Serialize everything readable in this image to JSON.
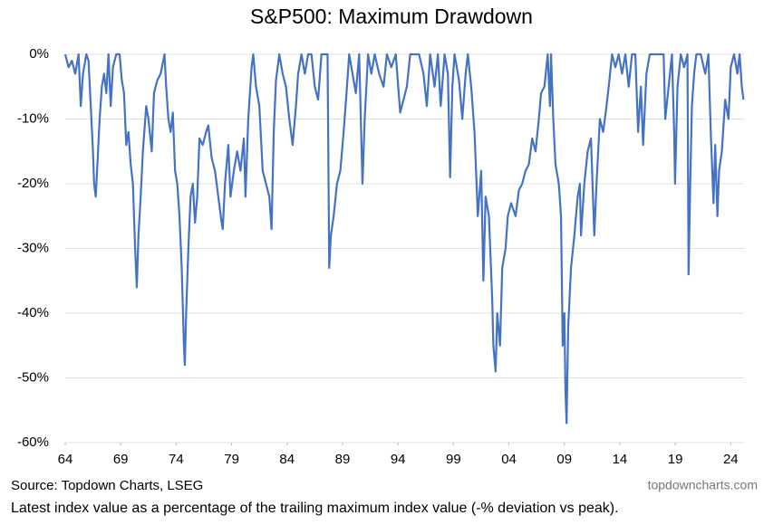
{
  "chart_data": {
    "type": "line",
    "title": "S&P500: Maximum Drawdown",
    "source": "Source: Topdown Charts, LSEG",
    "watermark": "topdowncharts.com",
    "note": "Latest index value as a percentage of the trailing maximum index value (-% deviation vs peak).",
    "x": [
      1964.0,
      1964.3,
      1964.6,
      1964.9,
      1965.2,
      1965.4,
      1965.6,
      1965.9,
      1966.1,
      1966.3,
      1966.5,
      1966.6,
      1966.75,
      1966.9,
      1967.1,
      1967.3,
      1967.5,
      1967.7,
      1967.9,
      1968.1,
      1968.3,
      1968.6,
      1968.9,
      1969.1,
      1969.3,
      1969.5,
      1969.7,
      1969.9,
      1970.1,
      1970.3,
      1970.45,
      1970.6,
      1970.8,
      1971.0,
      1971.3,
      1971.5,
      1971.8,
      1972.0,
      1972.3,
      1972.6,
      1972.95,
      1973.1,
      1973.3,
      1973.5,
      1973.7,
      1973.9,
      1974.1,
      1974.3,
      1974.5,
      1974.7,
      1974.78,
      1974.9,
      1975.1,
      1975.3,
      1975.5,
      1975.7,
      1975.9,
      1976.1,
      1976.4,
      1976.7,
      1976.9,
      1977.2,
      1977.5,
      1977.8,
      1978.1,
      1978.2,
      1978.4,
      1978.7,
      1978.9,
      1979.2,
      1979.5,
      1979.8,
      1980.1,
      1980.25,
      1980.5,
      1980.8,
      1980.95,
      1981.2,
      1981.5,
      1981.8,
      1982.1,
      1982.4,
      1982.6,
      1982.8,
      1983.0,
      1983.3,
      1983.6,
      1983.9,
      1984.2,
      1984.5,
      1984.8,
      1985.0,
      1985.3,
      1985.6,
      1985.9,
      1986.2,
      1986.5,
      1986.8,
      1987.1,
      1987.4,
      1987.65,
      1987.8,
      1987.95,
      1988.2,
      1988.5,
      1988.8,
      1989.1,
      1989.4,
      1989.6,
      1989.9,
      1990.2,
      1990.5,
      1990.8,
      1991.0,
      1991.3,
      1991.6,
      1991.9,
      1992.3,
      1992.7,
      1993.0,
      1993.4,
      1993.8,
      1994.2,
      1994.5,
      1994.8,
      1995.1,
      1995.5,
      1995.9,
      1996.3,
      1996.6,
      1996.9,
      1997.3,
      1997.6,
      1997.85,
      1998.2,
      1998.5,
      1998.7,
      1998.9,
      1999.1,
      1999.5,
      1999.8,
      2000.1,
      2000.3,
      2000.6,
      2000.9,
      2001.2,
      2001.5,
      2001.7,
      2001.9,
      2002.2,
      2002.5,
      2002.6,
      2002.8,
      2002.95,
      2003.2,
      2003.4,
      2003.7,
      2003.9,
      2004.2,
      2004.6,
      2004.9,
      2005.2,
      2005.5,
      2005.8,
      2006.1,
      2006.4,
      2006.7,
      2006.9,
      2007.2,
      2007.5,
      2007.7,
      2007.8,
      2008.0,
      2008.2,
      2008.5,
      2008.7,
      2008.85,
      2009.0,
      2009.1,
      2009.2,
      2009.35,
      2009.6,
      2009.9,
      2010.2,
      2010.4,
      2010.5,
      2010.8,
      2011.1,
      2011.4,
      2011.7,
      2011.9,
      2012.2,
      2012.5,
      2012.8,
      2013.0,
      2013.3,
      2013.6,
      2013.9,
      2014.2,
      2014.5,
      2014.8,
      2015.1,
      2015.4,
      2015.65,
      2015.9,
      2016.1,
      2016.4,
      2016.7,
      2017.0,
      2017.5,
      2017.95,
      2018.1,
      2018.4,
      2018.7,
      2018.9,
      2018.98,
      2019.2,
      2019.5,
      2019.8,
      2020.1,
      2020.2,
      2020.35,
      2020.5,
      2020.7,
      2020.9,
      2021.3,
      2021.7,
      2021.99,
      2022.2,
      2022.45,
      2022.6,
      2022.8,
      2022.95,
      2023.2,
      2023.5,
      2023.8,
      2024.0,
      2024.3,
      2024.6,
      2024.8,
      2025.0,
      2025.15
    ],
    "series": [
      {
        "name": "S&P500 drawdown",
        "color": "#4472c4",
        "values": [
          0,
          -2,
          -1,
          -3,
          0,
          -8,
          -3,
          0,
          -1,
          -8,
          -15,
          -20,
          -22,
          -17,
          -10,
          -5,
          -3,
          -6,
          0,
          -8,
          -2,
          0,
          0,
          -4,
          -6,
          -14,
          -12,
          -17,
          -20,
          -30,
          -36,
          -28,
          -22,
          -15,
          -8,
          -10,
          -15,
          -6,
          -4,
          -3,
          0,
          -5,
          -10,
          -12,
          -9,
          -18,
          -20,
          -25,
          -33,
          -45,
          -48,
          -40,
          -30,
          -22,
          -20,
          -26,
          -22,
          -13,
          -14,
          -12,
          -11,
          -16,
          -18,
          -22,
          -26,
          -27,
          -20,
          -14,
          -22,
          -18,
          -15,
          -18,
          -13,
          -22,
          -10,
          -2,
          0,
          -5,
          -8,
          -18,
          -20,
          -22,
          -27,
          -12,
          -4,
          0,
          -3,
          -5,
          -10,
          -14,
          -8,
          -3,
          0,
          -3,
          0,
          0,
          -5,
          -7,
          0,
          0,
          0,
          -33,
          -28,
          -25,
          -20,
          -18,
          -12,
          -5,
          0,
          -3,
          -6,
          0,
          -20,
          -10,
          0,
          -3,
          0,
          -3,
          -5,
          0,
          -2,
          0,
          -9,
          -7,
          -5,
          0,
          0,
          0,
          -3,
          -8,
          0,
          -5,
          0,
          -8,
          0,
          -3,
          -19,
          -5,
          0,
          -4,
          -10,
          -3,
          0,
          -5,
          -12,
          -25,
          -18,
          -35,
          -22,
          -25,
          -38,
          -45,
          -49,
          -40,
          -45,
          -33,
          -30,
          -25,
          -23,
          -25,
          -21,
          -20,
          -18,
          -17,
          -13,
          -15,
          -10,
          -6,
          -5,
          0,
          -8,
          0,
          -10,
          -17,
          -20,
          -25,
          -45,
          -40,
          -52,
          -57,
          -42,
          -33,
          -28,
          -22,
          -20,
          -28,
          -20,
          -15,
          -13,
          -28,
          -20,
          -10,
          -12,
          -8,
          -5,
          0,
          -2,
          0,
          -3,
          0,
          -5,
          0,
          0,
          -12,
          -5,
          -14,
          -3,
          0,
          0,
          0,
          0,
          -10,
          -5,
          0,
          -12,
          -20,
          -5,
          0,
          -2,
          0,
          -34,
          -20,
          -8,
          -3,
          0,
          0,
          -3,
          0,
          -12,
          -23,
          -14,
          -25,
          -18,
          -15,
          -7,
          -10,
          -2,
          0,
          -3,
          0,
          -5,
          -7
        ]
      }
    ],
    "xlim": [
      1964.0,
      2025.2
    ],
    "xticks": [
      {
        "value": 1964,
        "label": "64"
      },
      {
        "value": 1969,
        "label": "69"
      },
      {
        "value": 1974,
        "label": "74"
      },
      {
        "value": 1979,
        "label": "79"
      },
      {
        "value": 1984,
        "label": "84"
      },
      {
        "value": 1989,
        "label": "89"
      },
      {
        "value": 1994,
        "label": "94"
      },
      {
        "value": 1999,
        "label": "99"
      },
      {
        "value": 2004,
        "label": "04"
      },
      {
        "value": 2009,
        "label": "09"
      },
      {
        "value": 2014,
        "label": "14"
      },
      {
        "value": 2019,
        "label": "19"
      },
      {
        "value": 2024,
        "label": "24"
      }
    ],
    "ylim": [
      -60,
      0
    ],
    "yticks": [
      {
        "value": 0,
        "label": "0%"
      },
      {
        "value": -10,
        "label": "-10%"
      },
      {
        "value": -20,
        "label": "-20%"
      },
      {
        "value": -30,
        "label": "-30%"
      },
      {
        "value": -40,
        "label": "-40%"
      },
      {
        "value": -50,
        "label": "-50%"
      },
      {
        "value": -60,
        "label": "-60%"
      }
    ],
    "grid": true
  }
}
